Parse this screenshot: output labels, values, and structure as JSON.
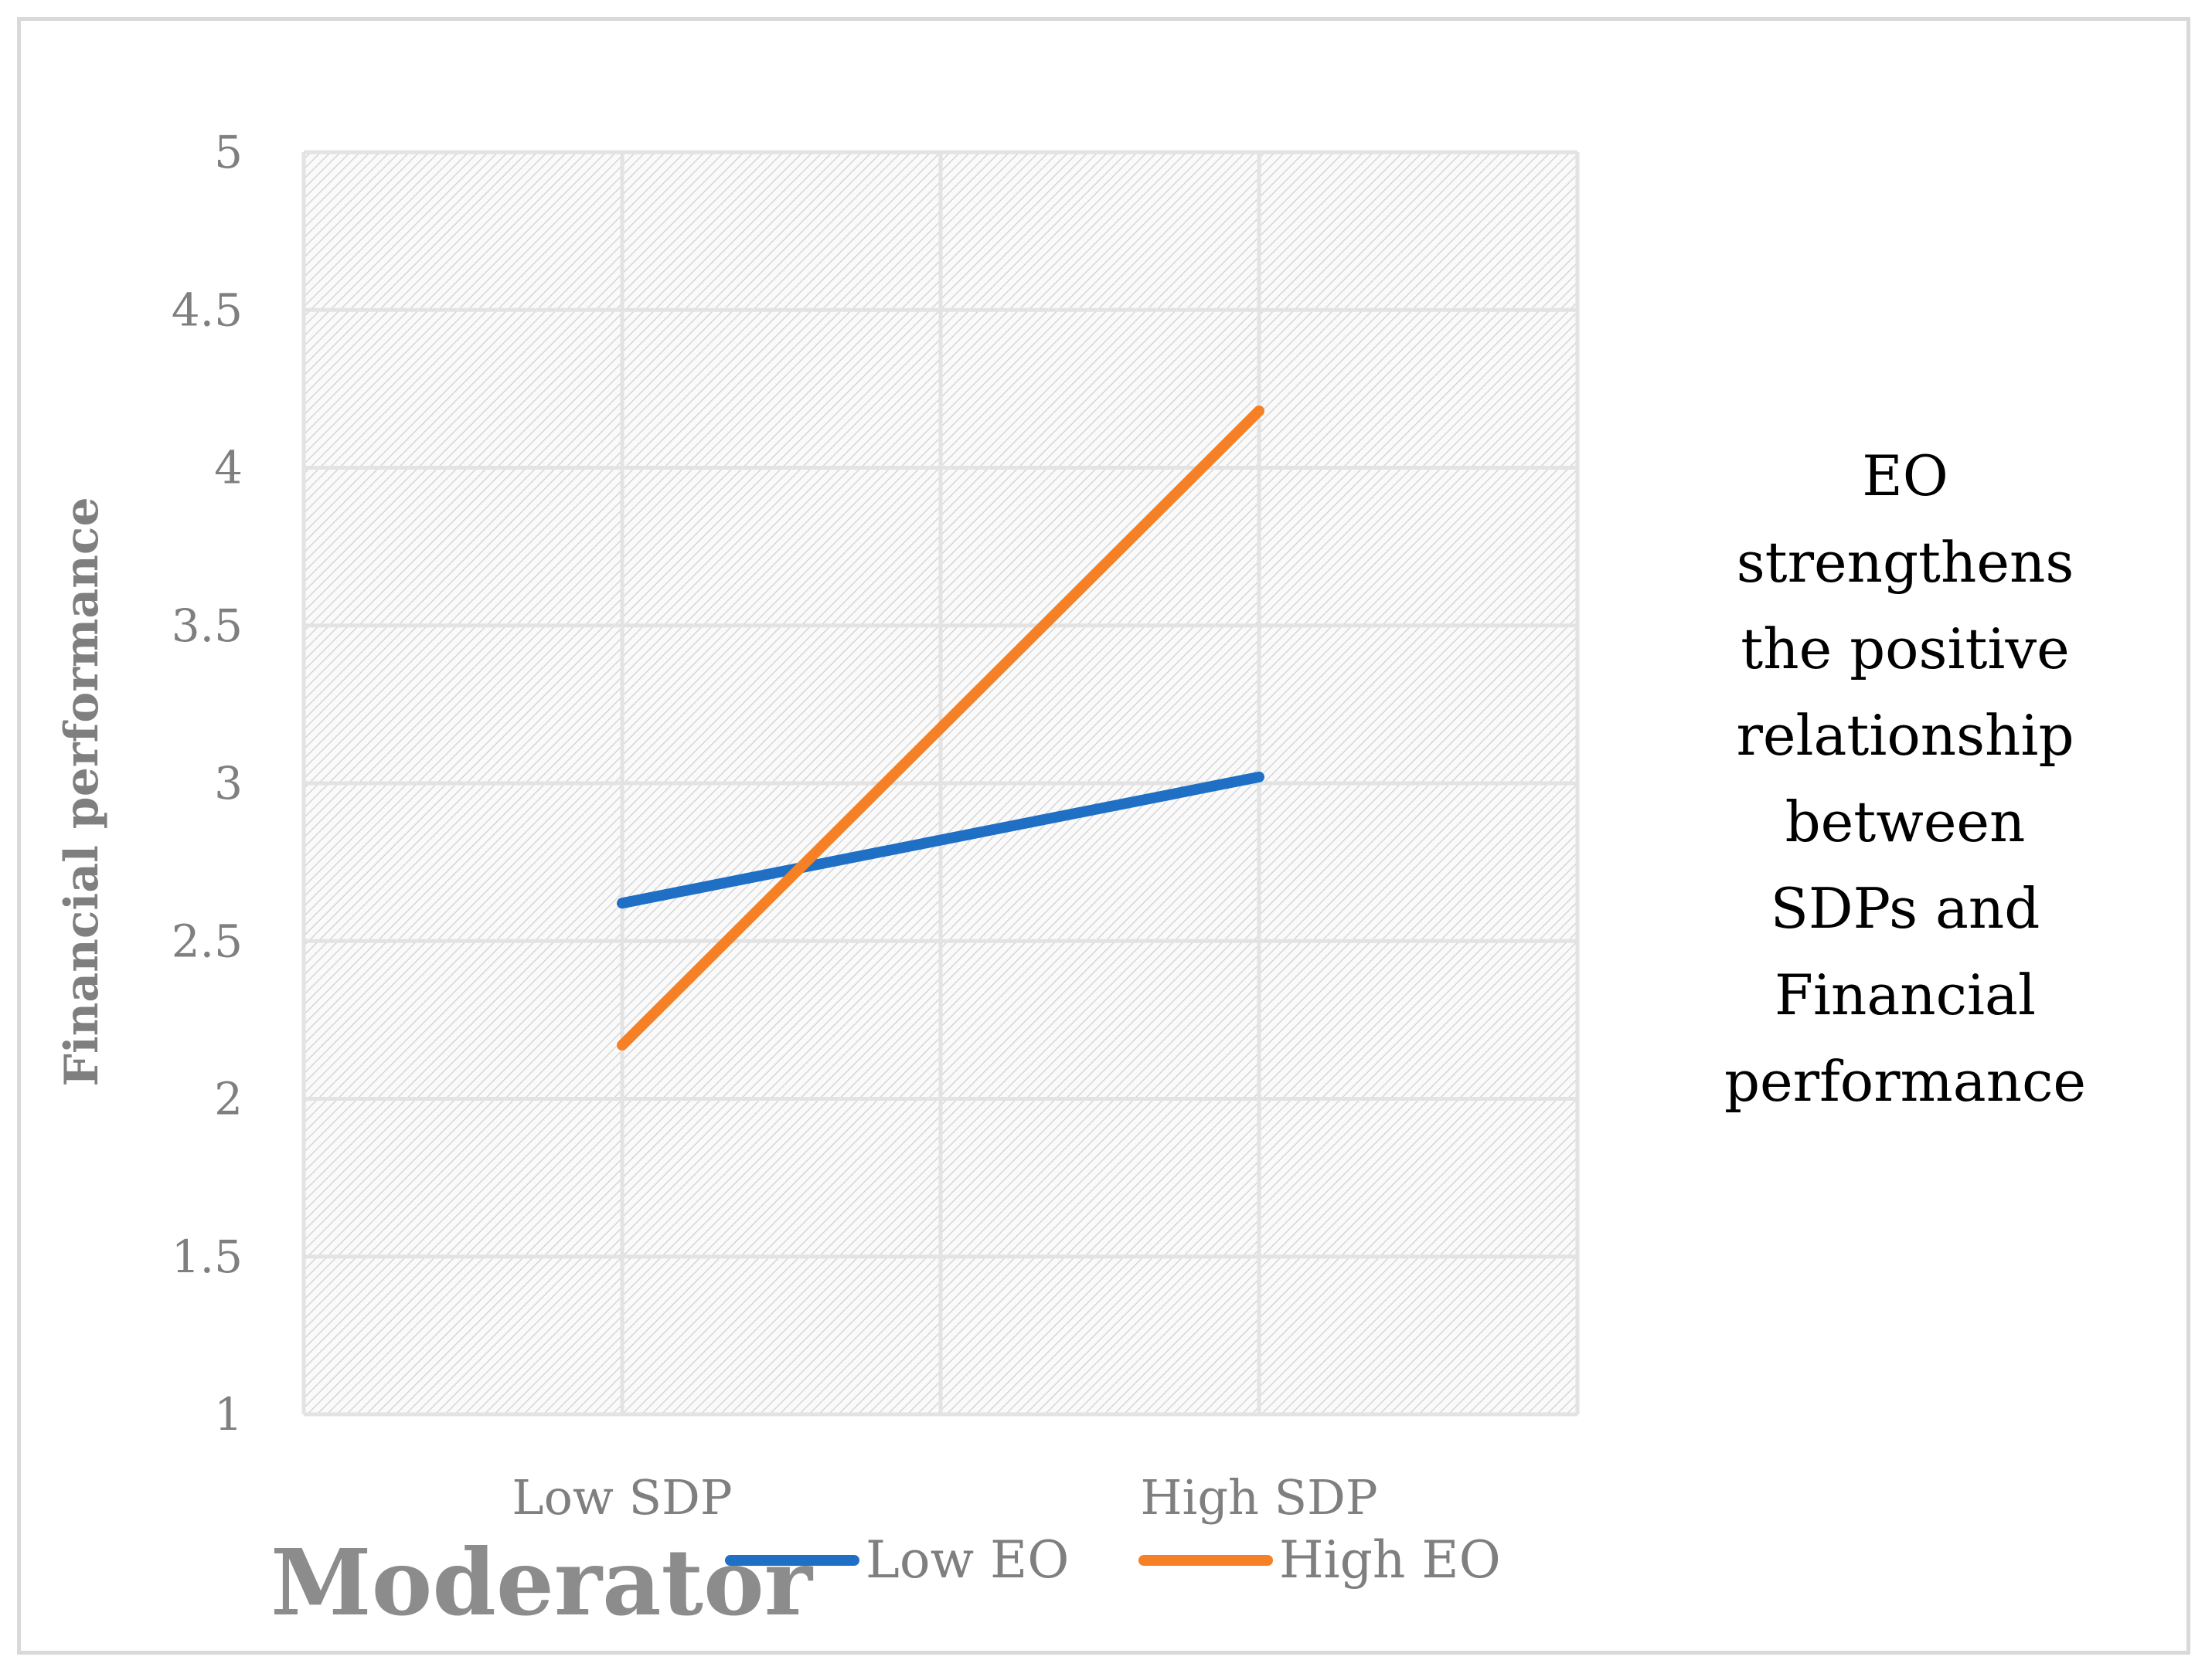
{
  "chart_data": {
    "type": "line",
    "title": "",
    "xlabel": "",
    "ylabel": "Financial performance",
    "categories": [
      "Low SDP",
      "High SDP"
    ],
    "series": [
      {
        "name": "Low EO",
        "values": [
          2.62,
          3.02
        ],
        "color": "#1f6fc5"
      },
      {
        "name": "High EO",
        "values": [
          2.17,
          4.18
        ],
        "color": "#f58025"
      }
    ],
    "ylim": [
      1,
      5
    ],
    "yticks": [
      1,
      1.5,
      2,
      2.5,
      3,
      3.5,
      4,
      4.5,
      5
    ],
    "ytick_labels": [
      "1",
      "1.5",
      "2",
      "2.5",
      "3",
      "3.5",
      "4",
      "4.5",
      "5"
    ],
    "grid": true,
    "legend": "bottom"
  },
  "overlay_label": "Moderator",
  "annotation": [
    "EO",
    "strengthens",
    "the positive",
    "relationship",
    "between",
    "SDPs and",
    "Financial",
    "performance"
  ]
}
